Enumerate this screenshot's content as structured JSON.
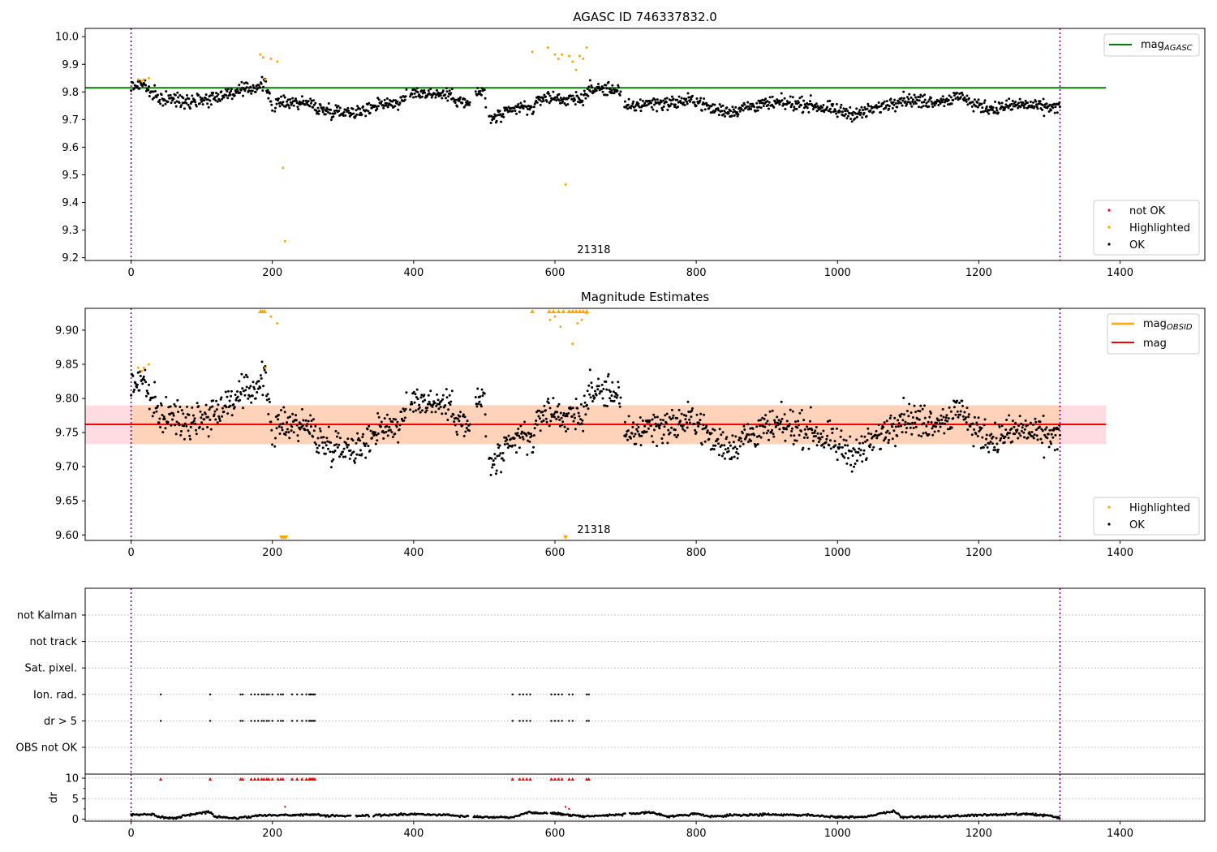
{
  "chart_data": [
    {
      "type": "scatter",
      "title": "AGASC ID 746337832.0",
      "xlim": [
        -65,
        1520
      ],
      "ylim": [
        9.19,
        10.03
      ],
      "xticks": [
        "0",
        "200",
        "400",
        "600",
        "800",
        "1000",
        "1200",
        "1400"
      ],
      "yticks": [
        "10.0",
        "9.9",
        "9.8",
        "9.7",
        "9.6",
        "9.5",
        "9.4",
        "9.3",
        "9.2"
      ],
      "obsid_label": "21318",
      "obsid_label_x": 655,
      "obs_boundaries": [
        0,
        1315
      ],
      "mag_agasc": 9.815,
      "mag_agasc_xrange": [
        -65,
        1380
      ],
      "legend_lines": [
        {
          "label": "mag",
          "subscript": "AGASC",
          "color": "#008000"
        }
      ],
      "legend_points": [
        {
          "label": "not OK",
          "color": "#ff0000"
        },
        {
          "label": "Highlighted",
          "color": "#ffa500"
        },
        {
          "label": "OK",
          "color": "#000000"
        }
      ],
      "colors": {
        "ok": "#000000",
        "highlighted": "#ffa500",
        "not_ok": "#ff0000",
        "boundary": "#800080"
      },
      "trend": [
        [
          0,
          9.82
        ],
        [
          20,
          9.83
        ],
        [
          25,
          9.8
        ],
        [
          40,
          9.775
        ],
        [
          80,
          9.77
        ],
        [
          110,
          9.775
        ],
        [
          130,
          9.79
        ],
        [
          160,
          9.805
        ],
        [
          190,
          9.83
        ],
        [
          200,
          9.75
        ],
        [
          220,
          9.765
        ],
        [
          250,
          9.76
        ],
        [
          270,
          9.735
        ],
        [
          300,
          9.73
        ],
        [
          330,
          9.73
        ],
        [
          350,
          9.76
        ],
        [
          380,
          9.76
        ],
        [
          400,
          9.8
        ],
        [
          420,
          9.795
        ],
        [
          450,
          9.79
        ],
        [
          480,
          9.75
        ],
        [
          490,
          9.8
        ],
        [
          500,
          9.8
        ],
        [
          505,
          9.7
        ],
        [
          530,
          9.72
        ],
        [
          550,
          9.745
        ],
        [
          570,
          9.74
        ],
        [
          580,
          9.78
        ],
        [
          600,
          9.78
        ],
        [
          620,
          9.77
        ],
        [
          640,
          9.78
        ],
        [
          650,
          9.81
        ],
        [
          690,
          9.81
        ],
        [
          700,
          9.74
        ],
        [
          730,
          9.76
        ],
        [
          760,
          9.76
        ],
        [
          800,
          9.77
        ],
        [
          820,
          9.74
        ],
        [
          850,
          9.73
        ],
        [
          880,
          9.75
        ],
        [
          920,
          9.76
        ],
        [
          960,
          9.755
        ],
        [
          1000,
          9.73
        ],
        [
          1030,
          9.72
        ],
        [
          1060,
          9.745
        ],
        [
          1090,
          9.775
        ],
        [
          1120,
          9.765
        ],
        [
          1150,
          9.77
        ],
        [
          1180,
          9.785
        ],
        [
          1190,
          9.755
        ],
        [
          1220,
          9.74
        ],
        [
          1260,
          9.755
        ],
        [
          1290,
          9.745
        ],
        [
          1315,
          9.745
        ]
      ],
      "gaps": [
        [
          200,
          203
        ],
        [
          390,
          395
        ],
        [
          480,
          487
        ],
        [
          503,
          506
        ],
        [
          693,
          698
        ]
      ],
      "noise": 0.012,
      "highlighted_points": [
        [
          10,
          9.845
        ],
        [
          15,
          9.84
        ],
        [
          18,
          9.845
        ],
        [
          25,
          9.85
        ],
        [
          183,
          9.935
        ],
        [
          187,
          9.925
        ],
        [
          190,
          9.845
        ],
        [
          198,
          9.92
        ],
        [
          207,
          9.91
        ],
        [
          215,
          9.525
        ],
        [
          218,
          9.26
        ],
        [
          568,
          9.945
        ],
        [
          590,
          9.96
        ],
        [
          600,
          9.935
        ],
        [
          605,
          9.92
        ],
        [
          610,
          9.935
        ],
        [
          615,
          9.465
        ],
        [
          620,
          9.93
        ],
        [
          625,
          9.91
        ],
        [
          630,
          9.88
        ],
        [
          635,
          9.93
        ],
        [
          640,
          9.92
        ],
        [
          645,
          9.96
        ]
      ]
    },
    {
      "type": "scatter",
      "title": "Magnitude Estimates",
      "xlim": [
        -65,
        1520
      ],
      "ylim": [
        9.592,
        9.932
      ],
      "xticks": [
        "0",
        "200",
        "400",
        "600",
        "800",
        "1000",
        "1200",
        "1400"
      ],
      "yticks": [
        "9.90",
        "9.85",
        "9.80",
        "9.75",
        "9.70",
        "9.65",
        "9.60"
      ],
      "obsid_label": "21318",
      "obsid_label_x": 655,
      "obs_boundaries": [
        0,
        1315
      ],
      "mag": 9.762,
      "mag_band": [
        9.733,
        9.79
      ],
      "mag_obsid": 9.762,
      "band_xrange": [
        -65,
        1380
      ],
      "legend_lines": [
        {
          "label": "mag",
          "subscript": "OBSID",
          "color": "#ffa500"
        },
        {
          "label": "mag",
          "subscript": "",
          "color": "#ff0000"
        }
      ],
      "legend_points": [
        {
          "label": "Highlighted",
          "color": "#ffa500"
        },
        {
          "label": "OK",
          "color": "#000000"
        }
      ],
      "colors": {
        "ok": "#000000",
        "highlighted": "#ffa500",
        "band_outer": "#ffc0cb",
        "band_inner": "#ffd2b5",
        "line": "#ff0000",
        "boundary": "#800080"
      },
      "upper_markers_x": [
        183,
        186,
        189,
        568,
        592,
        598,
        605,
        612,
        620,
        625,
        630,
        635,
        640,
        645
      ],
      "lower_markers_x": [
        213,
        216,
        219,
        615
      ],
      "highlighted_points": [
        [
          10,
          9.845
        ],
        [
          15,
          9.84
        ],
        [
          18,
          9.845
        ],
        [
          25,
          9.85
        ],
        [
          190,
          9.845
        ],
        [
          198,
          9.92
        ],
        [
          207,
          9.91
        ],
        [
          593,
          9.915
        ],
        [
          600,
          9.92
        ],
        [
          608,
          9.905
        ],
        [
          625,
          9.88
        ],
        [
          632,
          9.91
        ],
        [
          638,
          9.915
        ],
        [
          645,
          9.925
        ]
      ]
    },
    {
      "type": "scatter",
      "title": "",
      "xlim": [
        -65,
        1520
      ],
      "flag_labels": [
        "not Kalman",
        "not track",
        "Sat. pixel.",
        "Ion. rad.",
        "dr > 5",
        "OBS not OK"
      ],
      "flag_points_x": [
        42,
        112,
        155,
        158,
        170,
        175,
        180,
        185,
        188,
        192,
        195,
        200,
        208,
        212,
        215,
        228,
        235,
        242,
        248,
        252,
        254,
        256,
        258,
        260,
        540,
        550,
        555,
        560,
        565,
        595,
        600,
        605,
        610,
        620,
        625,
        645,
        648
      ],
      "dr_ylabel": "dr",
      "dr_yticks": [
        "10",
        "5",
        "0"
      ],
      "dr_ylim": [
        -0.5,
        11
      ],
      "dr_red_x": [
        42,
        112,
        155,
        158,
        170,
        175,
        180,
        185,
        188,
        192,
        195,
        200,
        208,
        212,
        215,
        228,
        235,
        242,
        248,
        252,
        254,
        256,
        258,
        260,
        540,
        550,
        555,
        560,
        565,
        595,
        600,
        605,
        610,
        620,
        625,
        645,
        648
      ],
      "dr_trend": [
        [
          0,
          1.0
        ],
        [
          30,
          1.2
        ],
        [
          40,
          0.6
        ],
        [
          60,
          0.2
        ],
        [
          80,
          1.0
        ],
        [
          110,
          1.8
        ],
        [
          120,
          0.6
        ],
        [
          150,
          0.2
        ],
        [
          180,
          0.9
        ],
        [
          220,
          1.0
        ],
        [
          260,
          1.1
        ],
        [
          280,
          0.8
        ],
        [
          320,
          0.8
        ],
        [
          360,
          1.0
        ],
        [
          400,
          1.2
        ],
        [
          450,
          1.0
        ],
        [
          500,
          0.5
        ],
        [
          540,
          0.5
        ],
        [
          560,
          1.6
        ],
        [
          600,
          1.4
        ],
        [
          640,
          0.7
        ],
        [
          680,
          1.0
        ],
        [
          740,
          1.6
        ],
        [
          760,
          0.6
        ],
        [
          800,
          1.3
        ],
        [
          820,
          0.6
        ],
        [
          860,
          1.0
        ],
        [
          900,
          1.1
        ],
        [
          960,
          1.0
        ],
        [
          1000,
          0.5
        ],
        [
          1040,
          0.6
        ],
        [
          1080,
          2.0
        ],
        [
          1090,
          0.5
        ],
        [
          1150,
          0.6
        ],
        [
          1200,
          1.0
        ],
        [
          1270,
          1.2
        ],
        [
          1300,
          0.8
        ],
        [
          1315,
          0.3
        ]
      ],
      "dr_gaps": [
        [
          312,
          318
        ],
        [
          338,
          342
        ],
        [
          478,
          484
        ],
        [
          590,
          594
        ],
        [
          700,
          705
        ]
      ],
      "dr_outliers": [
        [
          218,
          3.0
        ],
        [
          615,
          3.0
        ],
        [
          620,
          2.5
        ]
      ],
      "colors": {
        "ok": "#000000",
        "not_ok": "#ff0000",
        "grid": "#b0b0b0",
        "boundary": "#800080"
      }
    }
  ]
}
